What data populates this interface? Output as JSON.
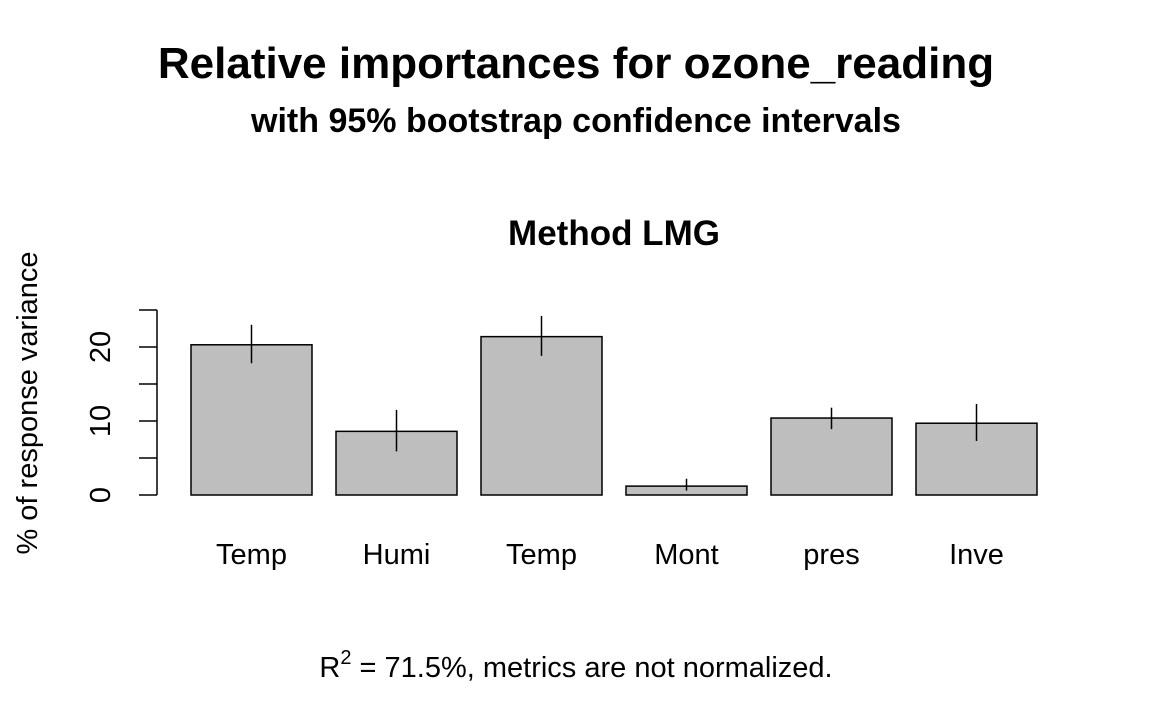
{
  "chart_data": {
    "type": "bar",
    "title": "Relative importances for ozone_reading",
    "subtitle": "with 95% bootstrap confidence intervals",
    "panel_title": "Method LMG",
    "ylabel": "% of response variance",
    "categories": [
      "Temp",
      "Humi",
      "Temp",
      "Mont",
      "pres",
      "Inve"
    ],
    "values": [
      20.3,
      8.6,
      21.4,
      1.2,
      10.4,
      9.7
    ],
    "ci_lower": [
      17.8,
      5.9,
      18.8,
      0.6,
      8.9,
      7.3
    ],
    "ci_upper": [
      23.0,
      11.5,
      24.2,
      2.2,
      11.8,
      12.3
    ],
    "ylim": [
      0,
      25
    ],
    "yticks": [
      0,
      10,
      20
    ],
    "yticks_minor": [
      5,
      15,
      25
    ],
    "bar_color": "#bebebe",
    "grid": false,
    "footnote": {
      "r_symbol": "R",
      "superscript": "2",
      "text": " = 71.5%, metrics are not normalized."
    }
  }
}
